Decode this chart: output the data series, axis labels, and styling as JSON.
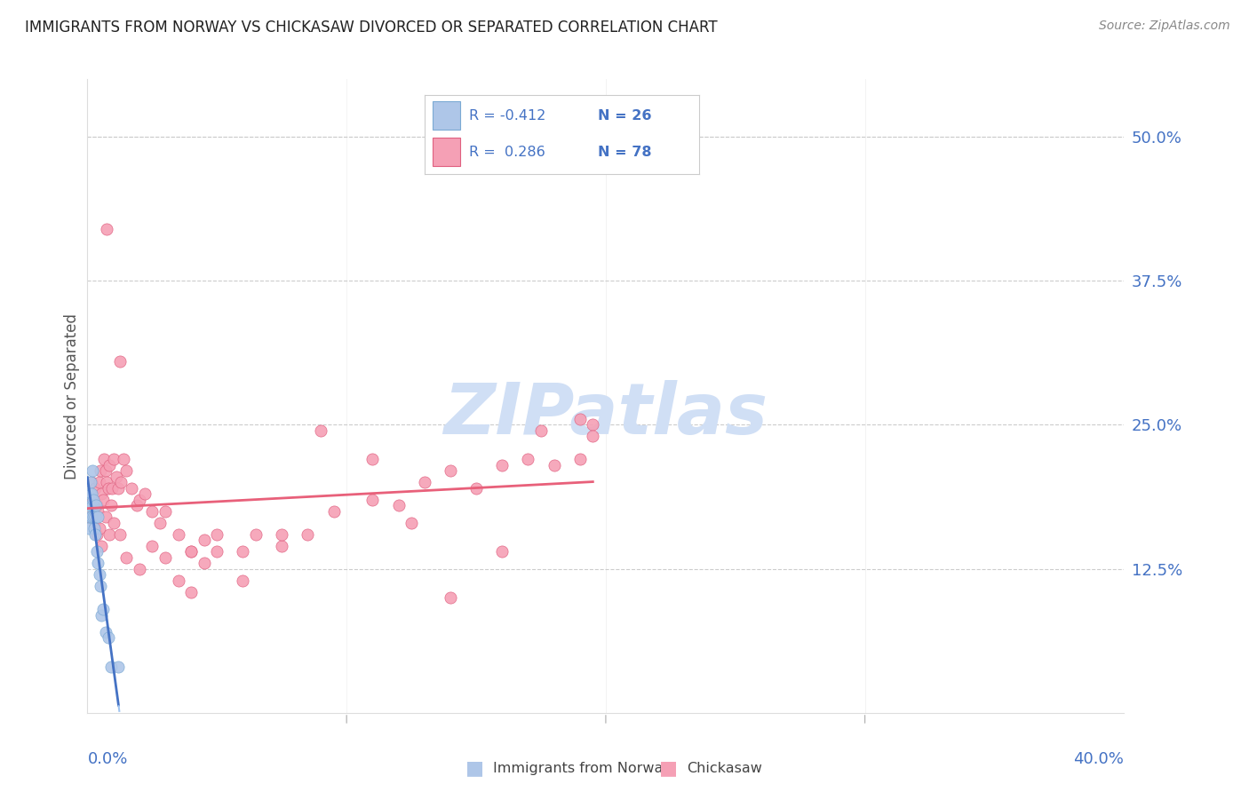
{
  "title": "IMMIGRANTS FROM NORWAY VS CHICKASAW DIVORCED OR SEPARATED CORRELATION CHART",
  "source": "Source: ZipAtlas.com",
  "ylabel": "Divorced or Separated",
  "ytick_values": [
    12.5,
    25.0,
    37.5,
    50.0
  ],
  "xlim": [
    0.0,
    40.0
  ],
  "ylim": [
    0.0,
    55.0
  ],
  "background_color": "#ffffff",
  "grid_color": "#cccccc",
  "title_color": "#222222",
  "axis_label_color": "#4472c4",
  "norway_color": "#aec6e8",
  "norway_edge": "#7baad4",
  "chickasaw_color": "#f5a0b5",
  "chickasaw_edge": "#e06080",
  "norway_line_color": "#4472c4",
  "chickasaw_line_color": "#e8607a",
  "norway_dash_color": "#a0c4f1",
  "watermark_color": "#d0dff5",
  "norway_points_x": [
    0.05,
    0.08,
    0.1,
    0.12,
    0.13,
    0.15,
    0.16,
    0.18,
    0.2,
    0.22,
    0.24,
    0.25,
    0.28,
    0.3,
    0.32,
    0.35,
    0.38,
    0.4,
    0.45,
    0.5,
    0.55,
    0.6,
    0.7,
    0.8,
    0.9,
    1.2
  ],
  "norway_points_y": [
    16.0,
    17.0,
    19.0,
    18.0,
    20.0,
    17.0,
    19.0,
    18.0,
    21.0,
    17.0,
    18.5,
    16.0,
    17.0,
    15.5,
    18.0,
    14.0,
    17.0,
    13.0,
    12.0,
    11.0,
    8.5,
    9.0,
    7.0,
    6.5,
    4.0,
    4.0
  ],
  "chickasaw_points_x": [
    0.1,
    0.15,
    0.2,
    0.25,
    0.3,
    0.35,
    0.4,
    0.45,
    0.5,
    0.55,
    0.6,
    0.65,
    0.7,
    0.75,
    0.8,
    0.85,
    0.9,
    0.95,
    1.0,
    1.1,
    1.2,
    1.3,
    1.4,
    1.5,
    1.7,
    1.9,
    2.0,
    2.2,
    2.5,
    2.8,
    3.0,
    3.5,
    4.0,
    4.5,
    5.0,
    6.0,
    6.5,
    7.5,
    8.5,
    9.5,
    11.0,
    12.0,
    13.0,
    14.0,
    15.0,
    16.0,
    17.0,
    18.0,
    19.0,
    19.5,
    0.25,
    0.35,
    0.45,
    0.55,
    0.7,
    0.85,
    1.0,
    1.25,
    1.5,
    2.0,
    2.5,
    3.0,
    3.5,
    4.0,
    4.5,
    5.0,
    6.0,
    7.5,
    9.0,
    11.0,
    12.5,
    14.0,
    16.0,
    17.5,
    19.0,
    19.5,
    0.75,
    1.25,
    4.0
  ],
  "chickasaw_points_y": [
    17.0,
    20.0,
    18.5,
    18.0,
    19.5,
    18.0,
    17.5,
    20.0,
    21.0,
    19.0,
    18.5,
    22.0,
    21.0,
    20.0,
    19.5,
    21.5,
    18.0,
    19.5,
    22.0,
    20.5,
    19.5,
    20.0,
    22.0,
    21.0,
    19.5,
    18.0,
    18.5,
    19.0,
    17.5,
    16.5,
    17.5,
    15.5,
    14.0,
    13.0,
    15.5,
    14.0,
    15.5,
    14.5,
    15.5,
    17.5,
    18.5,
    18.0,
    20.0,
    21.0,
    19.5,
    21.5,
    22.0,
    21.5,
    22.0,
    25.0,
    16.5,
    15.5,
    16.0,
    14.5,
    17.0,
    15.5,
    16.5,
    15.5,
    13.5,
    12.5,
    14.5,
    13.5,
    11.5,
    10.5,
    15.0,
    14.0,
    11.5,
    15.5,
    24.5,
    22.0,
    16.5,
    10.0,
    14.0,
    24.5,
    25.5,
    24.0,
    42.0,
    30.5,
    14.0
  ]
}
